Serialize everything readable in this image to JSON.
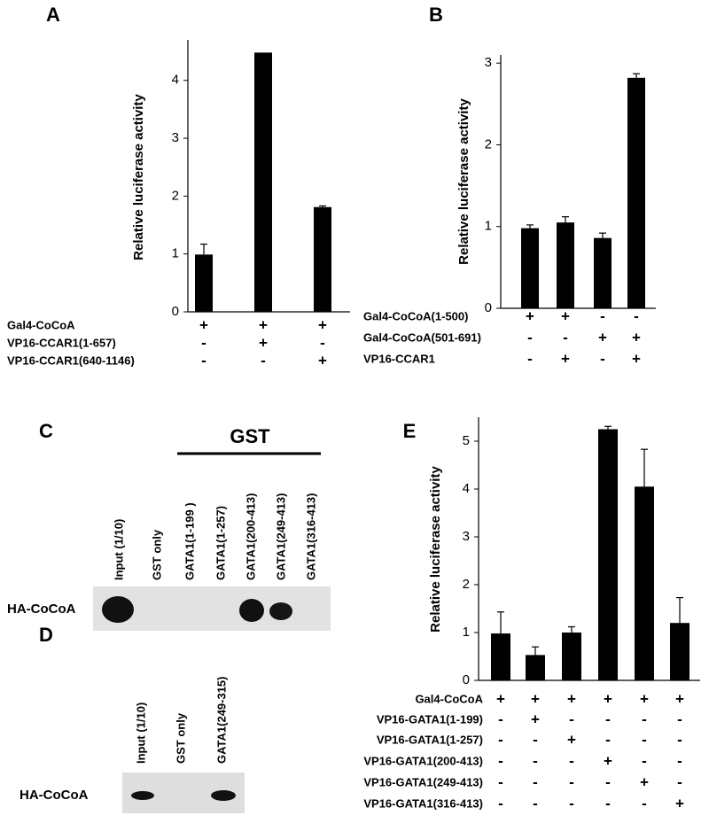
{
  "chart_data": [
    {
      "type": "bar",
      "title": "A",
      "y_label": "Relative luciferase activity",
      "color": "#000000",
      "ylim": [
        0,
        4.7
      ],
      "yticks": [
        0,
        1,
        2,
        3,
        4
      ],
      "values": [
        0.99,
        4.48,
        1.81
      ],
      "errors": [
        0.18,
        null,
        0.02
      ],
      "conditions": [
        {
          "label": "Gal4-CoCoA",
          "signs": [
            "+",
            "+",
            "+"
          ]
        },
        {
          "label": "VP16-CCAR1(1-657)",
          "signs": [
            "-",
            "+",
            "-"
          ]
        },
        {
          "label": "VP16-CCAR1(640-1146)",
          "signs": [
            "-",
            "-",
            "+"
          ]
        }
      ]
    },
    {
      "type": "bar",
      "title": "B",
      "y_label": "Relative luciferase activity",
      "color": "#000000",
      "ylim": [
        0,
        3.1
      ],
      "yticks": [
        0,
        1,
        2,
        3
      ],
      "values": [
        0.98,
        1.05,
        0.86,
        2.82
      ],
      "errors": [
        0.04,
        0.07,
        0.06,
        0.05
      ],
      "conditions": [
        {
          "label": "Gal4-CoCoA(1-500)",
          "signs": [
            "+",
            "+",
            "-",
            "-"
          ]
        },
        {
          "label": "Gal4-CoCoA(501-691)",
          "signs": [
            "-",
            "-",
            "+",
            "+"
          ]
        },
        {
          "label": "VP16-CCAR1",
          "signs": [
            "-",
            "+",
            "-",
            "+"
          ]
        }
      ]
    },
    {
      "type": "bar",
      "title": "E",
      "y_label": "Relative luciferase activity",
      "color": "#000000",
      "ylim": [
        0,
        5.5
      ],
      "yticks": [
        0,
        1,
        2,
        3,
        4,
        5
      ],
      "values": [
        0.98,
        0.53,
        1.0,
        5.25,
        4.05,
        1.2
      ],
      "errors": [
        0.45,
        0.17,
        0.12,
        0.06,
        0.78,
        0.53
      ],
      "conditions": [
        {
          "label": "Gal4-CoCoA",
          "signs": [
            "+",
            "+",
            "+",
            "+",
            "+",
            "+"
          ]
        },
        {
          "label": "VP16-GATA1(1-199)",
          "signs": [
            "-",
            "+",
            "-",
            "-",
            "-",
            "-"
          ]
        },
        {
          "label": "VP16-GATA1(1-257)",
          "signs": [
            "-",
            "-",
            "+",
            "-",
            "-",
            "-"
          ]
        },
        {
          "label": "VP16-GATA1(200-413)",
          "signs": [
            "-",
            "-",
            "-",
            "+",
            "-",
            "-"
          ]
        },
        {
          "label": "VP16-GATA1(249-413)",
          "signs": [
            "-",
            "-",
            "-",
            "-",
            "+",
            "-"
          ]
        },
        {
          "label": "VP16-GATA1(316-413)",
          "signs": [
            "-",
            "-",
            "-",
            "-",
            "-",
            "+"
          ]
        }
      ]
    }
  ],
  "blots": [
    {
      "label": "C",
      "header": "GST",
      "row_label": "HA-CoCoA",
      "lanes": [
        "Input (1/10)",
        "GST only",
        "GATA1(1-199 )",
        "GATA1(1-257)",
        "GATA1(200-413)",
        "GATA1(249-413)",
        "GATA1(316-413)"
      ]
    },
    {
      "label": "D",
      "row_label": "HA-CoCoA",
      "lanes": [
        "Input (1/10)",
        "GST only",
        "GATA1(249-315)"
      ]
    }
  ]
}
